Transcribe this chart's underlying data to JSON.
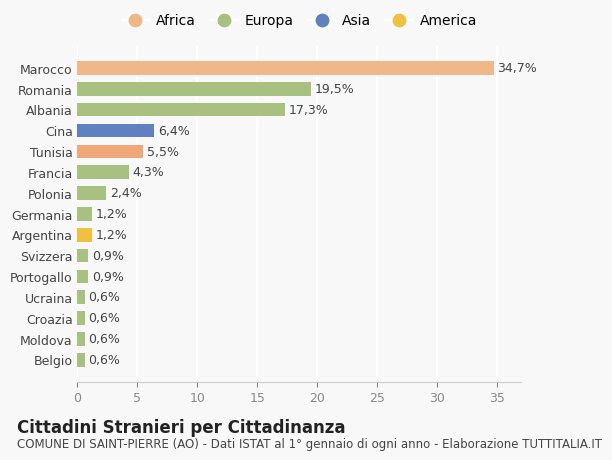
{
  "categories": [
    "Belgio",
    "Moldova",
    "Croazia",
    "Ucraina",
    "Portogallo",
    "Svizzera",
    "Argentina",
    "Germania",
    "Polonia",
    "Francia",
    "Tunisia",
    "Cina",
    "Albania",
    "Romania",
    "Marocco"
  ],
  "values": [
    0.6,
    0.6,
    0.6,
    0.6,
    0.9,
    0.9,
    1.2,
    1.2,
    2.4,
    4.3,
    5.5,
    6.4,
    17.3,
    19.5,
    34.7
  ],
  "labels": [
    "0,6%",
    "0,6%",
    "0,6%",
    "0,6%",
    "0,9%",
    "0,9%",
    "1,2%",
    "1,2%",
    "2,4%",
    "4,3%",
    "5,5%",
    "6,4%",
    "17,3%",
    "19,5%",
    "34,7%"
  ],
  "colors": [
    "#a8c080",
    "#a8c080",
    "#a8c080",
    "#a8c080",
    "#a8c080",
    "#a8c080",
    "#f0c040",
    "#a8c080",
    "#a8c080",
    "#a8c080",
    "#f0a878",
    "#6080c0",
    "#a8c080",
    "#a8c080",
    "#f0b888"
  ],
  "legend": [
    {
      "label": "Africa",
      "color": "#f0b888"
    },
    {
      "label": "Europa",
      "color": "#a8c080"
    },
    {
      "label": "Asia",
      "color": "#6080c0"
    },
    {
      "label": "America",
      "color": "#f0c040"
    }
  ],
  "xlim": [
    0,
    37
  ],
  "xticks": [
    0,
    5,
    10,
    15,
    20,
    25,
    30,
    35
  ],
  "title": "Cittadini Stranieri per Cittadinanza",
  "subtitle": "COMUNE DI SAINT-PIERRE (AO) - Dati ISTAT al 1° gennaio di ogni anno - Elaborazione TUTTITALIA.IT",
  "background_color": "#f8f8f8",
  "grid_color": "#ffffff",
  "bar_height": 0.65,
  "label_fontsize": 9,
  "tick_fontsize": 9,
  "title_fontsize": 12,
  "subtitle_fontsize": 8.5
}
